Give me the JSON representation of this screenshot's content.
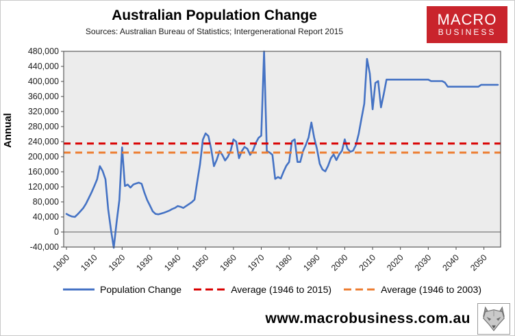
{
  "header": {
    "logo_line1": "MACRO",
    "logo_line2": "BUSINESS",
    "logo_bg": "#c9242c"
  },
  "footer": {
    "website": "www.macrobusiness.com.au"
  },
  "chart_data": {
    "type": "line",
    "title": "Australian Population Change",
    "subtitle": "Sources: Australian Bureau of Statistics; Intergenerational Report 2015",
    "ylabel": "Annual",
    "xlabel": "",
    "ylim": [
      -40000,
      480000
    ],
    "ytick_step": 40000,
    "xlim": [
      1899,
      2056
    ],
    "xticks": [
      1900,
      1910,
      1920,
      1930,
      1940,
      1950,
      1960,
      1970,
      1980,
      1990,
      2000,
      2010,
      2020,
      2030,
      2040,
      2050
    ],
    "x_start": 1900,
    "grid": false,
    "plot_bg": "#ececec",
    "plot_border": "#595959",
    "zero_line_color": "#8c8c8c",
    "legend_position": "bottom",
    "series": [
      {
        "name": "Population Change",
        "color": "#4472c4",
        "dash": false,
        "type": "line",
        "values": [
          48000,
          44000,
          41000,
          40000,
          47000,
          55000,
          63000,
          75000,
          90000,
          105000,
          122000,
          140000,
          175000,
          162000,
          140000,
          60000,
          5000,
          -42000,
          25000,
          85000,
          225000,
          122000,
          126000,
          118000,
          126000,
          129000,
          131000,
          128000,
          105000,
          85000,
          70000,
          55000,
          48000,
          47000,
          49000,
          51000,
          54000,
          57000,
          61000,
          64000,
          69000,
          67000,
          64000,
          69000,
          74000,
          79000,
          86000,
          135000,
          180000,
          245000,
          262000,
          255000,
          220000,
          175000,
          192000,
          215000,
          205000,
          190000,
          200000,
          216000,
          246000,
          240000,
          196000,
          215000,
          226000,
          221000,
          205000,
          216000,
          236000,
          250000,
          256000,
          480000,
          215000,
          211000,
          205000,
          141000,
          146000,
          142000,
          160000,
          176000,
          186000,
          241000,
          246000,
          186000,
          186000,
          215000,
          231000,
          251000,
          291000,
          251000,
          221000,
          181000,
          166000,
          161000,
          176000,
          196000,
          206000,
          191000,
          206000,
          216000,
          246000,
          221000,
          213000,
          216000,
          231000,
          261000,
          301000,
          341000,
          460000,
          421000,
          326000,
          396000,
          401000,
          331000,
          366000,
          405000,
          405000,
          405000,
          405000,
          405000,
          405000,
          405000,
          405000,
          405000,
          405000,
          405000,
          405000,
          405000,
          405000,
          405000,
          405000,
          401000,
          401000,
          401000,
          401000,
          401000,
          397000,
          386000,
          386000,
          386000,
          386000,
          386000,
          386000,
          386000,
          386000,
          386000,
          386000,
          386000,
          386000,
          391000,
          391000,
          391000,
          391000,
          391000,
          391000,
          391000
        ]
      },
      {
        "name": "Average (1946 to 2015)",
        "color": "#d90000",
        "dash": true,
        "type": "hline",
        "value": 235000
      },
      {
        "name": "Average (1946 to 2003)",
        "color": "#ed7d31",
        "dash": true,
        "type": "hline",
        "value": 211000
      }
    ]
  }
}
